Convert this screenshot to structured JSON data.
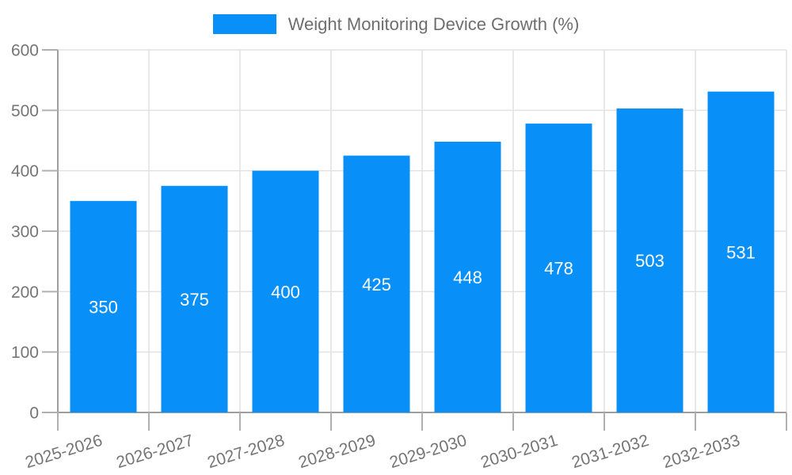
{
  "chart_data": {
    "type": "bar",
    "title": "Weight Monitoring Device Growth (%)",
    "categories": [
      "2025-2026",
      "2026-2027",
      "2027-2028",
      "2028-2029",
      "2029-2030",
      "2030-2031",
      "2031-2032",
      "2032-2033"
    ],
    "values": [
      350,
      375,
      400,
      425,
      448,
      478,
      503,
      531
    ],
    "xlabel": "",
    "ylabel": "",
    "ylim": [
      0,
      600
    ],
    "yticks": [
      0,
      100,
      200,
      300,
      400,
      500,
      600
    ],
    "grid": true,
    "legend_position": "top",
    "x_label_rotation_deg": -17,
    "bar_color": "#0890f8",
    "value_label_color": "#ffffff",
    "grid_color": "#e2e2e2",
    "axis_color": "#9e9e9e",
    "tick_color": "#b0b0b0",
    "tick_label_color": "#757575",
    "legend_text_color": "#6e6e6e",
    "background_color": "#ffffff"
  }
}
